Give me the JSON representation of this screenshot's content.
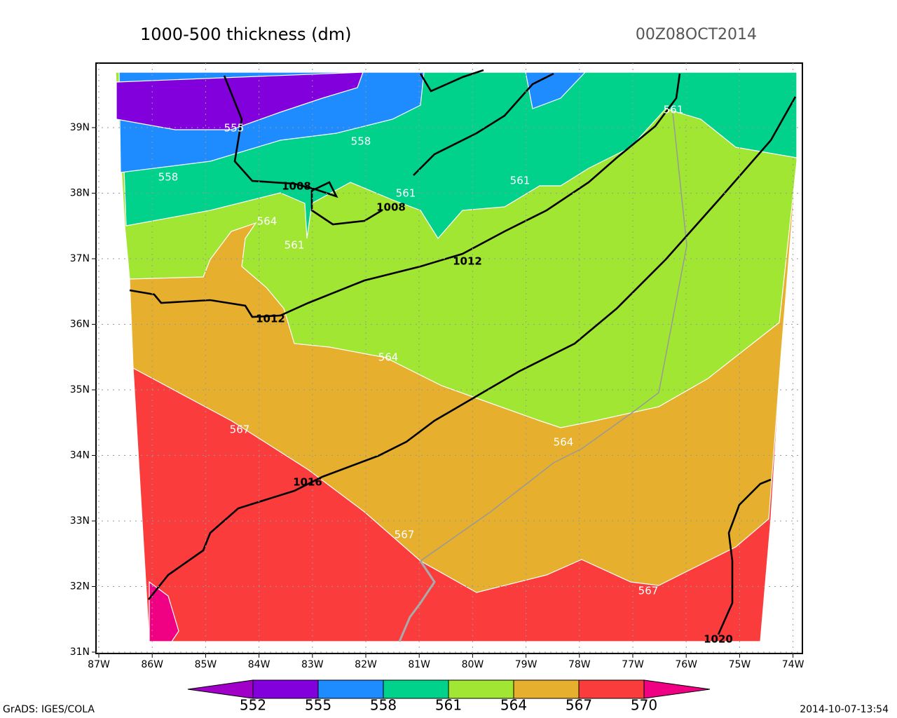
{
  "header": {
    "title": "1000-500 thickness (dm)",
    "time": "00Z08OCT2014"
  },
  "axes": {
    "lat_labels": [
      "31N",
      "32N",
      "33N",
      "34N",
      "35N",
      "36N",
      "37N",
      "38N",
      "39N"
    ],
    "lon_labels": [
      "87W",
      "86W",
      "85W",
      "84W",
      "83W",
      "82W",
      "81W",
      "80W",
      "79W",
      "78W",
      "77W",
      "76W",
      "75W",
      "74W"
    ]
  },
  "thickness_labels": [
    555,
    558,
    558,
    561,
    561,
    561,
    561,
    564,
    564,
    564,
    567,
    567,
    567
  ],
  "pressure_labels": [
    1008,
    1008,
    1012,
    1012,
    1016,
    1020
  ],
  "colorbar": {
    "levels": [
      552,
      555,
      558,
      561,
      564,
      567,
      570
    ]
  },
  "footer": {
    "left": "GrADS: IGES/COLA",
    "right": "2014-10-07-13:54"
  }
}
